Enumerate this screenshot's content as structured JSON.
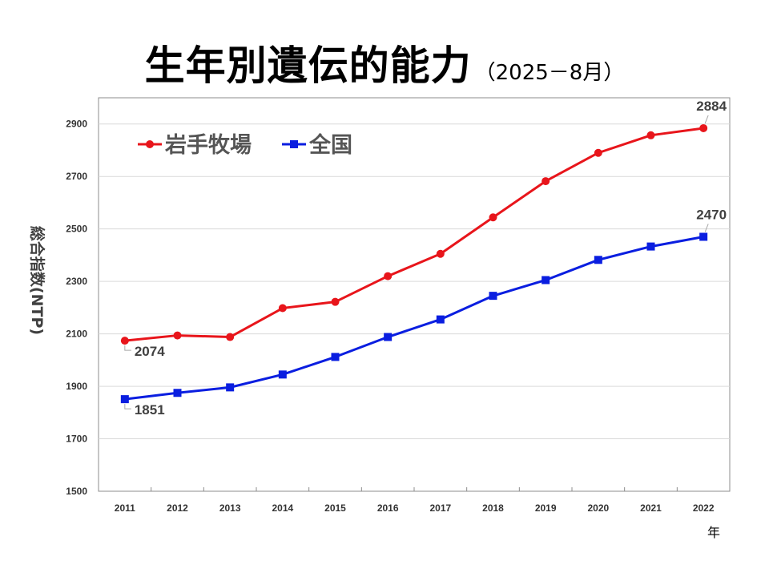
{
  "title": {
    "main": "生年別遺伝的能力",
    "sub": "（2025－8月）"
  },
  "chart_data": {
    "type": "line",
    "title": "生年別遺伝的能力（2025－8月）",
    "xlabel": "年",
    "ylabel": "総合指数(NTP)",
    "ylim": [
      1500,
      3000
    ],
    "yticks": [
      1500,
      1700,
      1900,
      2100,
      2300,
      2500,
      2700,
      2900
    ],
    "x": [
      "2011",
      "2012",
      "2013",
      "2014",
      "2015",
      "2016",
      "2017",
      "2018",
      "2019",
      "2020",
      "2021",
      "2022"
    ],
    "series": [
      {
        "name": "岩手牧場",
        "color": "#e8151b",
        "marker": "circle",
        "values": [
          2074,
          2094,
          2088,
          2198,
          2222,
          2320,
          2405,
          2544,
          2682,
          2790,
          2857,
          2884
        ]
      },
      {
        "name": "全国",
        "color": "#0a1ee0",
        "marker": "square",
        "values": [
          1851,
          1875,
          1896,
          1945,
          2012,
          2088,
          2155,
          2245,
          2305,
          2382,
          2433,
          2470
        ]
      }
    ],
    "data_labels": [
      {
        "series": 0,
        "index": 0,
        "text": "2074"
      },
      {
        "series": 0,
        "index": 11,
        "text": "2884"
      },
      {
        "series": 1,
        "index": 0,
        "text": "1851"
      },
      {
        "series": 1,
        "index": 11,
        "text": "2470"
      }
    ],
    "legend": "top-left",
    "grid": true
  }
}
